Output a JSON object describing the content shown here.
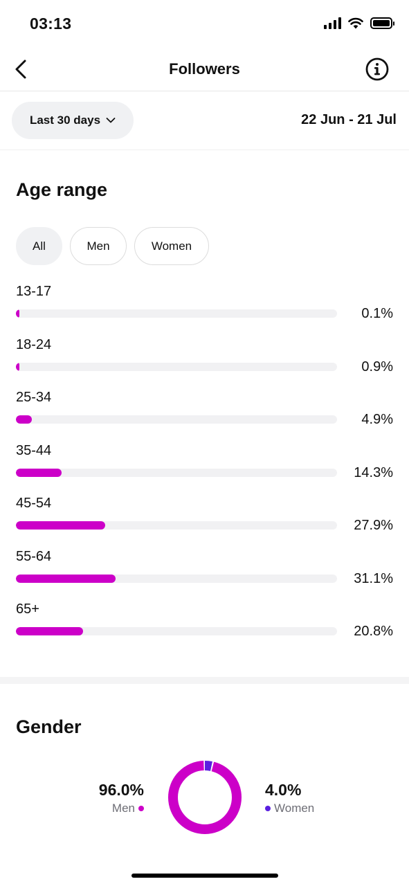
{
  "status_bar": {
    "time": "03:13"
  },
  "header": {
    "title": "Followers",
    "back_icon": "chevron-left-icon",
    "info_icon": "info-icon"
  },
  "filters": {
    "range_label": "Last 30 days",
    "date_range": "22 Jun - 21 Jul"
  },
  "age_section": {
    "title": "Age range",
    "chips": [
      {
        "label": "All",
        "active": true
      },
      {
        "label": "Men",
        "active": false
      },
      {
        "label": "Women",
        "active": false
      }
    ],
    "accent_color": "#cc00c8",
    "rows": [
      {
        "label": "13-17",
        "value_text": "0.1%",
        "value": 0.1
      },
      {
        "label": "18-24",
        "value_text": "0.9%",
        "value": 0.9
      },
      {
        "label": "25-34",
        "value_text": "4.9%",
        "value": 4.9
      },
      {
        "label": "35-44",
        "value_text": "14.3%",
        "value": 14.3
      },
      {
        "label": "45-54",
        "value_text": "27.9%",
        "value": 27.9
      },
      {
        "label": "55-64",
        "value_text": "31.1%",
        "value": 31.1
      },
      {
        "label": "65+",
        "value_text": "20.8%",
        "value": 20.8
      }
    ]
  },
  "gender_section": {
    "title": "Gender",
    "men": {
      "pct_text": "96.0%",
      "label": "Men",
      "value": 96.0,
      "color": "#cc00c8"
    },
    "women": {
      "pct_text": "4.0%",
      "label": "Women",
      "value": 4.0,
      "color": "#5a1fe0"
    }
  }
}
